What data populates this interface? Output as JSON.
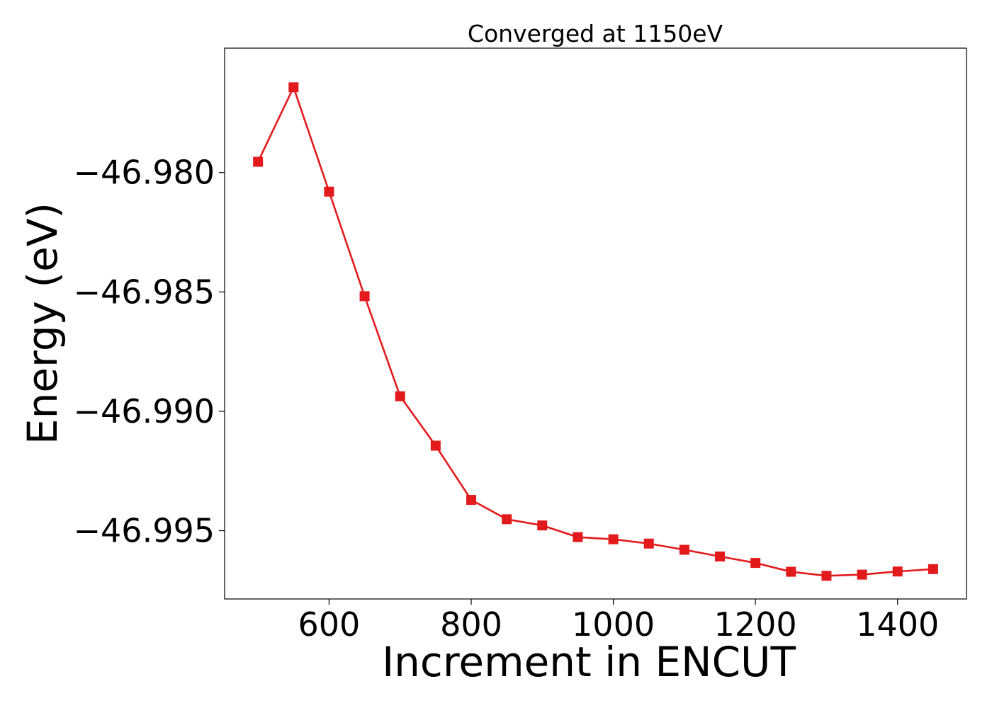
{
  "chart_data": {
    "type": "line",
    "title": "Converged at 1150eV",
    "xlabel": "Increment in ENCUT",
    "ylabel": "Energy (eV)",
    "xlim": [
      453,
      1497
    ],
    "ylim": [
      -46.99786,
      -46.97479
    ],
    "x_ticks": [
      {
        "value": 600,
        "label": "600"
      },
      {
        "value": 800,
        "label": "800"
      },
      {
        "value": 1000,
        "label": "1000"
      },
      {
        "value": 1200,
        "label": "1200"
      },
      {
        "value": 1400,
        "label": "1400"
      }
    ],
    "y_ticks": [
      {
        "value": -46.98,
        "label": "−46.980"
      },
      {
        "value": -46.985,
        "label": "−46.985"
      },
      {
        "value": -46.99,
        "label": "−46.990"
      },
      {
        "value": -46.995,
        "label": "−46.995"
      }
    ],
    "grid": false,
    "series": [
      {
        "color": "#e31a1c",
        "marker": "square",
        "x": [
          500,
          550,
          600,
          650,
          700,
          750,
          800,
          850,
          900,
          950,
          1000,
          1050,
          1100,
          1150,
          1200,
          1250,
          1300,
          1350,
          1400,
          1450
        ],
        "y": [
          -46.97955,
          -46.97643,
          -46.9808,
          -46.98518,
          -46.98937,
          -46.99144,
          -46.99371,
          -46.99452,
          -46.99478,
          -46.99527,
          -46.99536,
          -46.99554,
          -46.9958,
          -46.99608,
          -46.99635,
          -46.99672,
          -46.99689,
          -46.99684,
          -46.99671,
          -46.99661
        ]
      }
    ]
  }
}
